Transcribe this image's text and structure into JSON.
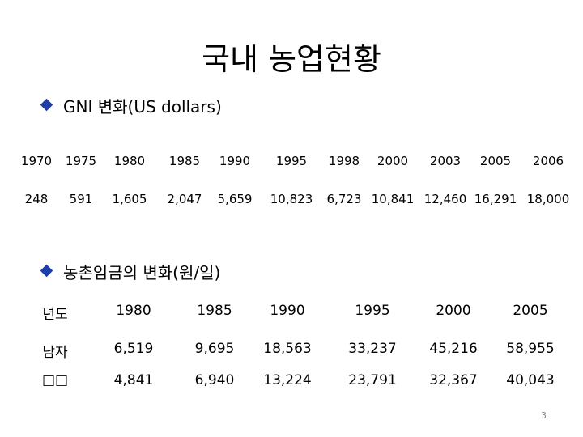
{
  "title": "국내 농업현황",
  "sections": [
    {
      "heading": "GNI 변화(US dollars)",
      "table": {
        "rows": [
          [
            "1970",
            "1975",
            "1980",
            "1985",
            "1990",
            "1995",
            "1998",
            "2000",
            "2003",
            "2005",
            "2006"
          ],
          [
            "248",
            "591",
            "1,605",
            "2,047",
            "5,659",
            "10,823",
            "6,723",
            "10,841",
            "12,460",
            "16,291",
            "18,000"
          ]
        ]
      }
    },
    {
      "heading": "농촌임금의 변화(원/일)",
      "table": {
        "rows": [
          [
            "년도",
            "1980",
            "1985",
            "1990",
            "1995",
            "2000",
            "2005"
          ],
          [
            "남자",
            "6,519",
            "9,695",
            "18,563",
            "33,237",
            "45,216",
            "58,955"
          ],
          [
            "□□",
            "4,841",
            "6,940",
            "13,224",
            "23,791",
            "32,367",
            "40,043"
          ]
        ]
      }
    }
  ],
  "page_number": "3"
}
